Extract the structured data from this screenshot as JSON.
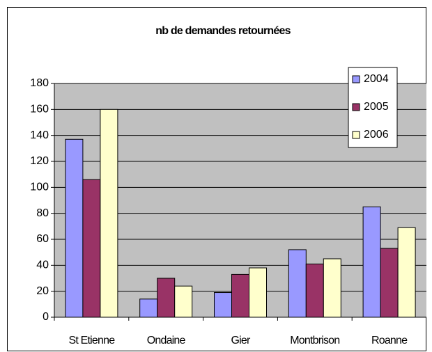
{
  "chart_data": {
    "type": "bar",
    "title": "nb de demandes retournées",
    "categories": [
      "St Etienne",
      "Ondaine",
      "Gier",
      "Montbrison",
      "Roanne"
    ],
    "series": [
      {
        "name": "2004",
        "color": "#9999ff",
        "values": [
          137,
          14,
          19,
          52,
          85
        ]
      },
      {
        "name": "2005",
        "color": "#993366",
        "values": [
          106,
          30,
          33,
          41,
          53
        ]
      },
      {
        "name": "2006",
        "color": "#ffffcc",
        "values": [
          160,
          24,
          38,
          45,
          69
        ]
      }
    ],
    "ylim": [
      0,
      180
    ],
    "yticks": [
      0,
      20,
      40,
      60,
      80,
      100,
      120,
      140,
      160,
      180
    ],
    "grid": true,
    "legend": "top-right"
  }
}
